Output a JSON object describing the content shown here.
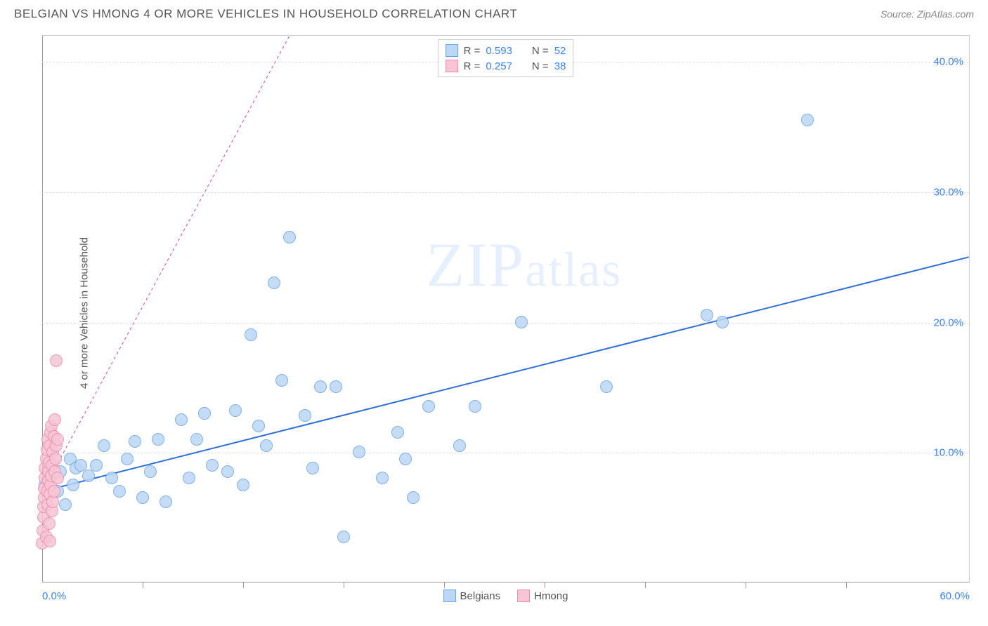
{
  "title": "BELGIAN VS HMONG 4 OR MORE VEHICLES IN HOUSEHOLD CORRELATION CHART",
  "source": "Source: ZipAtlas.com",
  "ylabel": "4 or more Vehicles in Household",
  "watermark_zip": "ZIP",
  "watermark_atlas": "atlas",
  "chart": {
    "type": "scatter",
    "xlim": [
      0,
      60
    ],
    "ylim": [
      0,
      42
    ],
    "x_ticks": [
      0,
      60
    ],
    "x_tick_labels": [
      "0.0%",
      "60.0%"
    ],
    "x_minor_ticks": [
      6.5,
      13,
      19.5,
      26,
      32.5,
      39,
      45.5,
      52
    ],
    "y_ticks": [
      10,
      20,
      30,
      40
    ],
    "y_tick_labels": [
      "10.0%",
      "20.0%",
      "30.0%",
      "40.0%"
    ],
    "background_color": "#ffffff",
    "grid_color": "#dddddd",
    "series": [
      {
        "name": "Belgians",
        "fill": "#bcd6f5",
        "stroke": "#6aa3e8",
        "line_color": "#2f6fd8",
        "line_width": 2,
        "line_dash": "none",
        "point_radius": 9,
        "r_label": "R =",
        "r_value": "0.593",
        "n_label": "N =",
        "n_value": "52",
        "trend": {
          "x1": 0,
          "y1": 7.0,
          "x2": 60,
          "y2": 25.0
        },
        "points": [
          [
            0.2,
            7.5
          ],
          [
            0.5,
            8.0
          ],
          [
            1.0,
            7.0
          ],
          [
            1.2,
            8.5
          ],
          [
            1.5,
            6.0
          ],
          [
            1.8,
            9.5
          ],
          [
            2.0,
            7.5
          ],
          [
            2.2,
            8.8
          ],
          [
            2.5,
            9.0
          ],
          [
            3.0,
            8.2
          ],
          [
            3.5,
            9.0
          ],
          [
            4.0,
            10.5
          ],
          [
            4.5,
            8.0
          ],
          [
            5.0,
            7.0
          ],
          [
            5.5,
            9.5
          ],
          [
            6.0,
            10.8
          ],
          [
            6.5,
            6.5
          ],
          [
            7.0,
            8.5
          ],
          [
            7.5,
            11.0
          ],
          [
            8.0,
            6.2
          ],
          [
            9.0,
            12.5
          ],
          [
            9.5,
            8.0
          ],
          [
            10.0,
            11.0
          ],
          [
            10.5,
            13.0
          ],
          [
            11.0,
            9.0
          ],
          [
            12.0,
            8.5
          ],
          [
            12.5,
            13.2
          ],
          [
            13.0,
            7.5
          ],
          [
            13.5,
            19.0
          ],
          [
            14.0,
            12.0
          ],
          [
            14.5,
            10.5
          ],
          [
            15.0,
            23.0
          ],
          [
            15.5,
            15.5
          ],
          [
            16.0,
            26.5
          ],
          [
            17.0,
            12.8
          ],
          [
            17.5,
            8.8
          ],
          [
            18.0,
            15.0
          ],
          [
            19.0,
            15.0
          ],
          [
            19.5,
            3.5
          ],
          [
            20.5,
            10.0
          ],
          [
            22.0,
            8.0
          ],
          [
            23.0,
            11.5
          ],
          [
            23.5,
            9.5
          ],
          [
            24.0,
            6.5
          ],
          [
            25.0,
            13.5
          ],
          [
            27.0,
            10.5
          ],
          [
            28.0,
            13.5
          ],
          [
            31.0,
            20.0
          ],
          [
            36.5,
            15.0
          ],
          [
            43.0,
            20.5
          ],
          [
            44.0,
            20.0
          ],
          [
            49.5,
            35.5
          ]
        ]
      },
      {
        "name": "Hmong",
        "fill": "#f7c5d5",
        "stroke": "#ec8bab",
        "line_color": "#e84a7a",
        "line_width": 2,
        "line_dash": "4 4",
        "point_radius": 9,
        "r_label": "R =",
        "r_value": "0.257",
        "n_label": "N =",
        "n_value": "38",
        "trend": {
          "x1": 0,
          "y1": 7.0,
          "x2": 16,
          "y2": 42.0
        },
        "trend_solid_end_x": 1.0,
        "points": [
          [
            0.0,
            3.0
          ],
          [
            0.05,
            4.0
          ],
          [
            0.1,
            5.0
          ],
          [
            0.1,
            5.8
          ],
          [
            0.15,
            6.5
          ],
          [
            0.15,
            7.2
          ],
          [
            0.2,
            8.0
          ],
          [
            0.2,
            8.8
          ],
          [
            0.25,
            3.5
          ],
          [
            0.25,
            9.5
          ],
          [
            0.3,
            7.0
          ],
          [
            0.3,
            10.2
          ],
          [
            0.35,
            6.0
          ],
          [
            0.35,
            11.0
          ],
          [
            0.4,
            7.8
          ],
          [
            0.4,
            8.5
          ],
          [
            0.45,
            9.2
          ],
          [
            0.45,
            4.5
          ],
          [
            0.5,
            10.5
          ],
          [
            0.5,
            6.8
          ],
          [
            0.55,
            11.5
          ],
          [
            0.55,
            7.5
          ],
          [
            0.6,
            8.2
          ],
          [
            0.6,
            12.0
          ],
          [
            0.65,
            5.5
          ],
          [
            0.65,
            9.0
          ],
          [
            0.7,
            10.0
          ],
          [
            0.7,
            6.2
          ],
          [
            0.75,
            11.2
          ],
          [
            0.75,
            7.0
          ],
          [
            0.8,
            8.5
          ],
          [
            0.8,
            12.5
          ],
          [
            0.85,
            9.5
          ],
          [
            0.9,
            10.5
          ],
          [
            0.9,
            17.0
          ],
          [
            1.0,
            8.0
          ],
          [
            1.0,
            11.0
          ],
          [
            0.5,
            3.2
          ]
        ]
      }
    ]
  },
  "legend_bottom": [
    {
      "label": "Belgians",
      "fill": "#bcd6f5",
      "stroke": "#6aa3e8"
    },
    {
      "label": "Hmong",
      "fill": "#f7c5d5",
      "stroke": "#ec8bab"
    }
  ]
}
